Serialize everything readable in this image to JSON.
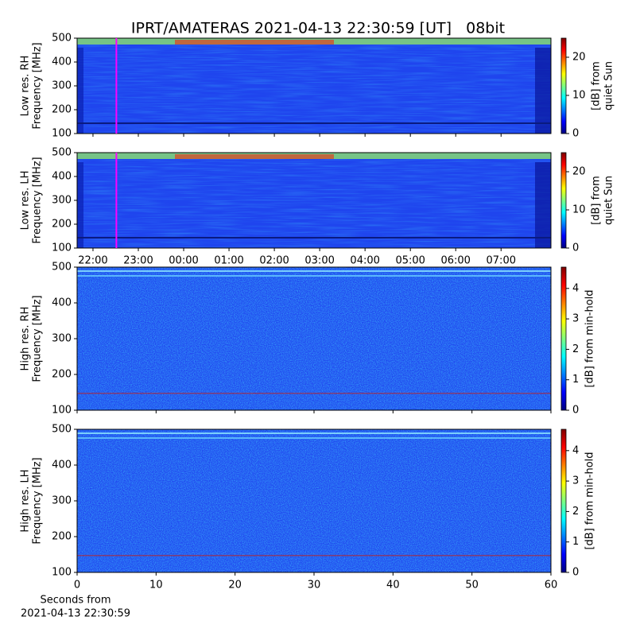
{
  "chart_data": [
    {
      "type": "heatmap",
      "title": "IPRT/AMATERAS 2021-04-13 22:30:59 [UT]   08bit",
      "ylabel": [
        "Low res. RH",
        "Frequency [MHz]"
      ],
      "ylim": [
        100,
        500
      ],
      "yticks": [
        100,
        200,
        300,
        400,
        500
      ],
      "xlim": [
        21.65,
        32.1
      ],
      "xticks": [
        {
          "value": 22,
          "label": "22:00"
        },
        {
          "value": 23,
          "label": "23:00"
        },
        {
          "value": 24,
          "label": "00:00"
        },
        {
          "value": 25,
          "label": "01:00"
        },
        {
          "value": 26,
          "label": "02:00"
        },
        {
          "value": 27,
          "label": "03:00"
        },
        {
          "value": 28,
          "label": "04:00"
        },
        {
          "value": 29,
          "label": "05:00"
        },
        {
          "value": 30,
          "label": "06:00"
        },
        {
          "value": 31,
          "label": "07:00"
        }
      ],
      "xtick_labels": false,
      "marker_x": 22.516,
      "marker_color": "#ff00ff",
      "colorbar": {
        "label": [
          "[dB] from",
          "quiet Sun"
        ],
        "lim": [
          0,
          25
        ],
        "ticks": [
          0,
          10,
          20
        ],
        "colormap": "jet"
      }
    },
    {
      "type": "heatmap",
      "ylabel": [
        "Low res. LH",
        "Frequency [MHz]"
      ],
      "ylim": [
        100,
        500
      ],
      "yticks": [
        100,
        200,
        300,
        400,
        500
      ],
      "xlim": [
        21.65,
        32.1
      ],
      "xticks": [
        {
          "value": 22,
          "label": "22:00"
        },
        {
          "value": 23,
          "label": "23:00"
        },
        {
          "value": 24,
          "label": "00:00"
        },
        {
          "value": 25,
          "label": "01:00"
        },
        {
          "value": 26,
          "label": "02:00"
        },
        {
          "value": 27,
          "label": "03:00"
        },
        {
          "value": 28,
          "label": "04:00"
        },
        {
          "value": 29,
          "label": "05:00"
        },
        {
          "value": 30,
          "label": "06:00"
        },
        {
          "value": 31,
          "label": "07:00"
        }
      ],
      "xtick_labels": true,
      "marker_x": 22.516,
      "marker_color": "#ff00ff",
      "colorbar": {
        "label": [
          "[dB] from",
          "quiet Sun"
        ],
        "lim": [
          0,
          25
        ],
        "ticks": [
          0,
          10,
          20
        ],
        "colormap": "jet"
      }
    },
    {
      "type": "heatmap",
      "ylabel": [
        "High res. RH",
        "Frequency [MHz]"
      ],
      "ylim": [
        100,
        500
      ],
      "yticks": [
        100,
        200,
        300,
        400,
        500
      ],
      "xlim": [
        0,
        60
      ],
      "xticks": [
        0,
        10,
        20,
        30,
        40,
        50,
        60
      ],
      "xtick_labels": false,
      "colorbar": {
        "label": [
          "[dB] from min-hold"
        ],
        "lim": [
          0,
          4.7
        ],
        "ticks": [
          0,
          1,
          2,
          3,
          4
        ],
        "colormap": "jet"
      }
    },
    {
      "type": "heatmap",
      "ylabel": [
        "High res. LH",
        "Frequency [MHz]"
      ],
      "ylim": [
        100,
        500
      ],
      "yticks": [
        100,
        200,
        300,
        400,
        500
      ],
      "xlim": [
        0,
        60
      ],
      "xticks": [
        0,
        10,
        20,
        30,
        40,
        50,
        60
      ],
      "xtick_labels": true,
      "xlabel": [
        "Seconds from",
        "2021-04-13 22:30:59"
      ],
      "colorbar": {
        "label": [
          "[dB] from min-hold"
        ],
        "lim": [
          0,
          4.7
        ],
        "ticks": [
          0,
          1,
          2,
          3,
          4
        ],
        "colormap": "jet"
      }
    }
  ]
}
